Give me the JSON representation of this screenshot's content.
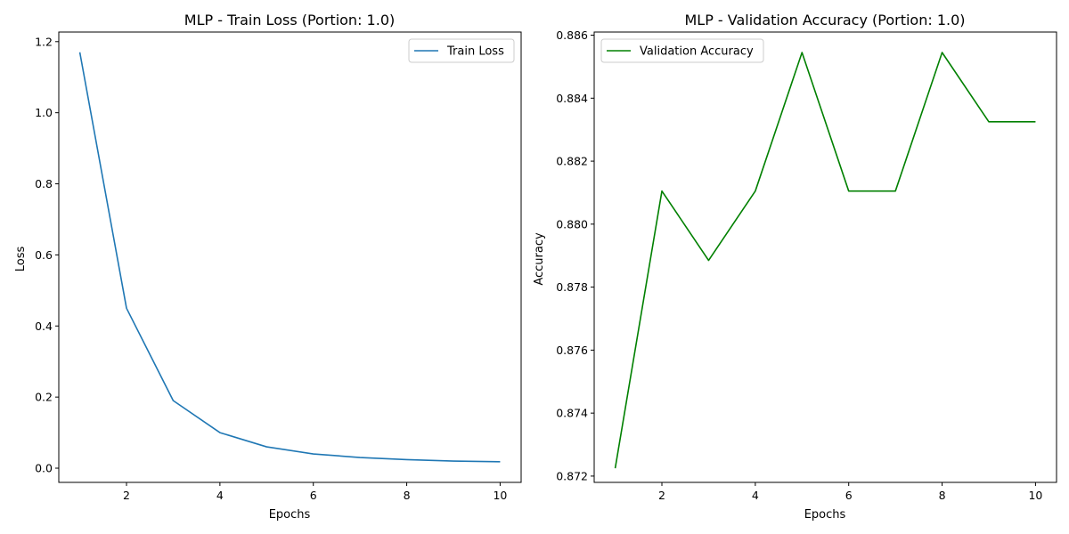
{
  "chart_data": [
    {
      "type": "line",
      "title": "MLP - Train Loss (Portion: 1.0)",
      "xlabel": "Epochs",
      "ylabel": "Loss",
      "x": [
        1,
        2,
        3,
        4,
        5,
        6,
        7,
        8,
        9,
        10
      ],
      "series": [
        {
          "name": "Train Loss",
          "color": "#1f77b4",
          "values": [
            1.17,
            0.45,
            0.19,
            0.1,
            0.06,
            0.04,
            0.03,
            0.024,
            0.02,
            0.018
          ]
        }
      ],
      "xlim": [
        0.55,
        10.45
      ],
      "ylim": [
        -0.04,
        1.227
      ],
      "xticks": [
        2,
        4,
        6,
        8,
        10
      ],
      "xtick_labels": [
        "2",
        "4",
        "6",
        "8",
        "10"
      ],
      "yticks": [
        0.0,
        0.2,
        0.4,
        0.6,
        0.8,
        1.0,
        1.2
      ],
      "ytick_labels": [
        "0.0",
        "0.2",
        "0.4",
        "0.6",
        "0.8",
        "1.0",
        "1.2"
      ],
      "grid": false,
      "legend_position": "top-right"
    },
    {
      "type": "line",
      "title": "MLP - Validation Accuracy (Portion: 1.0)",
      "xlabel": "Epochs",
      "ylabel": "Accuracy",
      "x": [
        1,
        2,
        3,
        4,
        5,
        6,
        7,
        8,
        9,
        10
      ],
      "series": [
        {
          "name": "Validation Accuracy",
          "color": "#008000",
          "values": [
            0.87225,
            0.88105,
            0.87885,
            0.88105,
            0.88545,
            0.88105,
            0.88105,
            0.88545,
            0.88325,
            0.88325
          ]
        }
      ],
      "xlim": [
        0.55,
        10.45
      ],
      "ylim": [
        0.8718,
        0.8861
      ],
      "xticks": [
        2,
        4,
        6,
        8,
        10
      ],
      "xtick_labels": [
        "2",
        "4",
        "6",
        "8",
        "10"
      ],
      "yticks": [
        0.872,
        0.874,
        0.876,
        0.878,
        0.88,
        0.882,
        0.884,
        0.886
      ],
      "ytick_labels": [
        "0.872",
        "0.874",
        "0.876",
        "0.878",
        "0.880",
        "0.882",
        "0.884",
        "0.886"
      ],
      "grid": false,
      "legend_position": "top-left"
    }
  ]
}
